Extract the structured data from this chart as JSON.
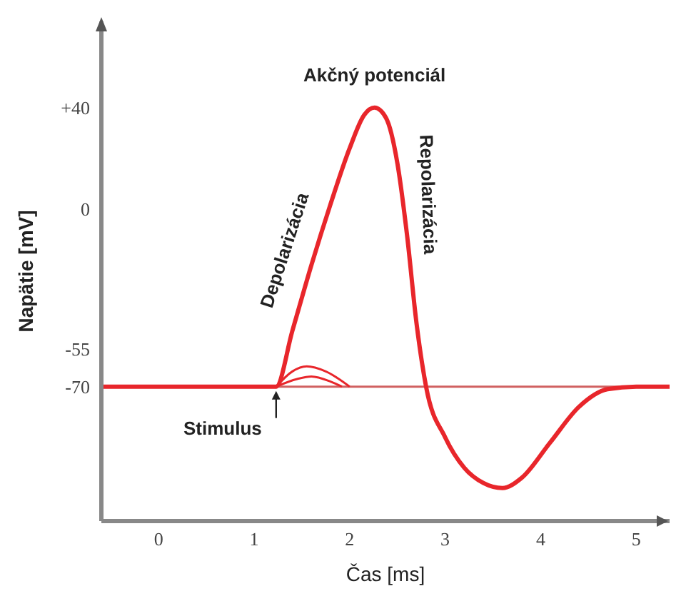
{
  "chart_data": {
    "type": "line",
    "xlabel": "Čas [ms]",
    "ylabel": "Napätie [mV]",
    "xlim": [
      -0.6,
      5.35
    ],
    "xticks": [
      0,
      1,
      2,
      3,
      4,
      5
    ],
    "ylim": [
      -123,
      74
    ],
    "yticks": [
      {
        "value": 40,
        "label": "+40"
      },
      0,
      -55,
      -70
    ],
    "grid": false,
    "legend": false,
    "marker": "none",
    "line_style": "solid",
    "series": [
      {
        "color": "#e8262b",
        "x": [
          -0.6,
          1.23,
          1.4,
          1.6,
          1.8,
          2.0,
          2.15,
          2.26,
          2.38,
          2.5,
          2.6,
          2.7,
          2.8,
          3.0,
          3.2,
          3.4,
          3.6,
          3.8,
          4.1,
          4.4,
          4.7,
          5.0,
          5.35
        ],
        "values": [
          -70,
          -70,
          -48,
          -22,
          2,
          24,
          37,
          40,
          36,
          18,
          -10,
          -45,
          -70,
          -90,
          -102,
          -108,
          -110,
          -106,
          -92,
          -78,
          -71,
          -70,
          -70
        ]
      },
      {
        "color": "#e8262b",
        "x": [
          1.23,
          1.4,
          1.55,
          1.75,
          2.0
        ],
        "values": [
          -70,
          -64,
          -62,
          -64,
          -70
        ]
      },
      {
        "color": "#e8262b",
        "x": [
          1.23,
          1.45,
          1.6,
          1.8,
          1.92
        ],
        "values": [
          -70,
          -67,
          -66,
          -68,
          -70
        ]
      }
    ],
    "ref_lines": [
      {
        "axis": "y",
        "value": -70,
        "color": "#d06060"
      }
    ],
    "annotations": [
      {
        "text": "Akčný potenciál",
        "x": 2.26,
        "y": 40
      },
      {
        "text": "Depolarizácia",
        "x": 1.6,
        "y": -22
      },
      {
        "text": "Repolarizácia",
        "x": 2.6,
        "y": -10
      },
      {
        "text": "Stimulus",
        "x": 1.23,
        "y": -70
      }
    ]
  }
}
